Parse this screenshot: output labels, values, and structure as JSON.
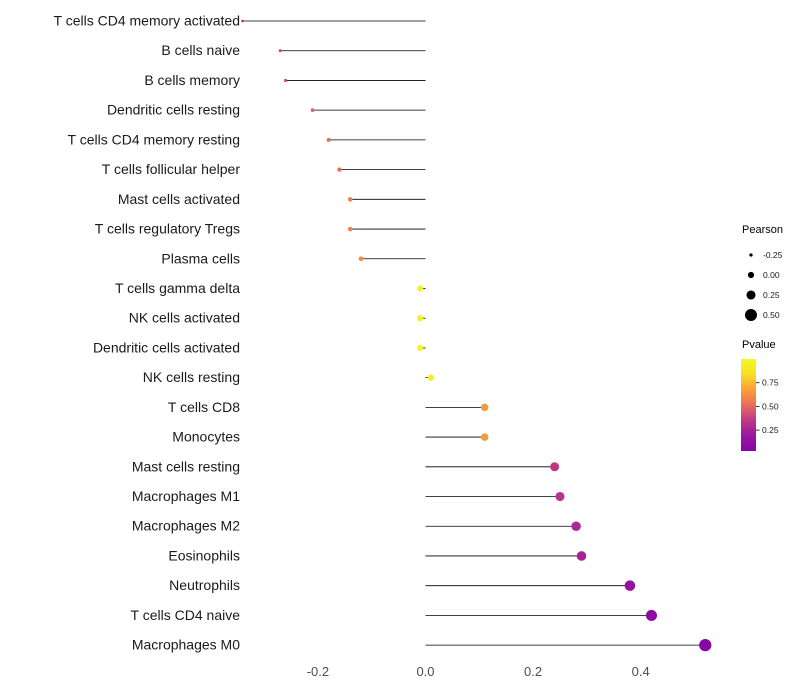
{
  "page": {
    "background": "#ffffff"
  },
  "chart_data": {
    "type": "lollipop",
    "orientation": "horizontal",
    "title": "",
    "xlabel": "",
    "ylabel": "",
    "grid": false,
    "xlim": [
      -0.37,
      0.56
    ],
    "x_ticks": [
      {
        "value": -0.2,
        "label": "-0.2"
      },
      {
        "value": 0.0,
        "label": "0.0"
      },
      {
        "value": 0.2,
        "label": "0.2"
      },
      {
        "value": 0.4,
        "label": "0.4"
      }
    ],
    "points": [
      {
        "category": "T cells CD4 memory activated",
        "pearson": -0.34,
        "pvalue": 0.28
      },
      {
        "category": "B cells naive",
        "pearson": -0.27,
        "pvalue": 0.42
      },
      {
        "category": "B cells memory",
        "pearson": -0.26,
        "pvalue": 0.4
      },
      {
        "category": "Dendritic cells resting",
        "pearson": -0.21,
        "pvalue": 0.48
      },
      {
        "category": "T cells CD4 memory resting",
        "pearson": -0.18,
        "pvalue": 0.52
      },
      {
        "category": "T cells follicular helper",
        "pearson": -0.16,
        "pvalue": 0.52
      },
      {
        "category": "Mast cells activated",
        "pearson": -0.14,
        "pvalue": 0.58
      },
      {
        "category": "T cells regulatory  Tregs",
        "pearson": -0.14,
        "pvalue": 0.58
      },
      {
        "category": "Plasma cells",
        "pearson": -0.12,
        "pvalue": 0.62
      },
      {
        "category": "T cells gamma delta",
        "pearson": -0.01,
        "pvalue": 0.95
      },
      {
        "category": "NK cells activated",
        "pearson": -0.01,
        "pvalue": 0.95
      },
      {
        "category": "Dendritic cells activated",
        "pearson": -0.01,
        "pvalue": 0.97
      },
      {
        "category": "NK cells resting",
        "pearson": 0.01,
        "pvalue": 0.93
      },
      {
        "category": "T cells CD8",
        "pearson": 0.11,
        "pvalue": 0.65
      },
      {
        "category": "Monocytes",
        "pearson": 0.11,
        "pvalue": 0.65
      },
      {
        "category": "Mast cells resting",
        "pearson": 0.24,
        "pvalue": 0.35
      },
      {
        "category": "Macrophages M1",
        "pearson": 0.25,
        "pvalue": 0.33
      },
      {
        "category": "Macrophages M2",
        "pearson": 0.28,
        "pvalue": 0.28
      },
      {
        "category": "Eosinophils",
        "pearson": 0.29,
        "pvalue": 0.25
      },
      {
        "category": "Neutrophils",
        "pearson": 0.38,
        "pvalue": 0.15
      },
      {
        "category": "T cells CD4 naive",
        "pearson": 0.42,
        "pvalue": 0.1
      },
      {
        "category": "Macrophages M0",
        "pearson": 0.52,
        "pvalue": 0.04
      }
    ],
    "legend": {
      "size": {
        "title": "Pearson",
        "entries": [
          {
            "label": "-0.25",
            "value": -0.25
          },
          {
            "label": "0.00",
            "value": 0.0
          },
          {
            "label": "0.25",
            "value": 0.25
          },
          {
            "label": "0.50",
            "value": 0.5
          }
        ]
      },
      "color": {
        "title": "Pvalue",
        "domain": [
          0.03,
          1.0
        ],
        "tick_labels": [
          {
            "label": "0.75",
            "value": 0.75
          },
          {
            "label": "0.50",
            "value": 0.5
          },
          {
            "label": "0.25",
            "value": 0.25
          }
        ],
        "stops": [
          {
            "p": 0.03,
            "color": "#8405A7"
          },
          {
            "p": 0.2,
            "color": "#9C179E"
          },
          {
            "p": 0.35,
            "color": "#BD3786"
          },
          {
            "p": 0.45,
            "color": "#D8576B"
          },
          {
            "p": 0.55,
            "color": "#ED7953"
          },
          {
            "p": 0.7,
            "color": "#FCA636"
          },
          {
            "p": 0.85,
            "color": "#F7E225"
          },
          {
            "p": 1.0,
            "color": "#F0F921"
          }
        ]
      }
    },
    "style": {
      "segment_color": "#000000",
      "axis_text_color": "#4D4D4D",
      "label_color": "#1A1A1A",
      "legend_text_color": "#1A1A1A"
    }
  }
}
